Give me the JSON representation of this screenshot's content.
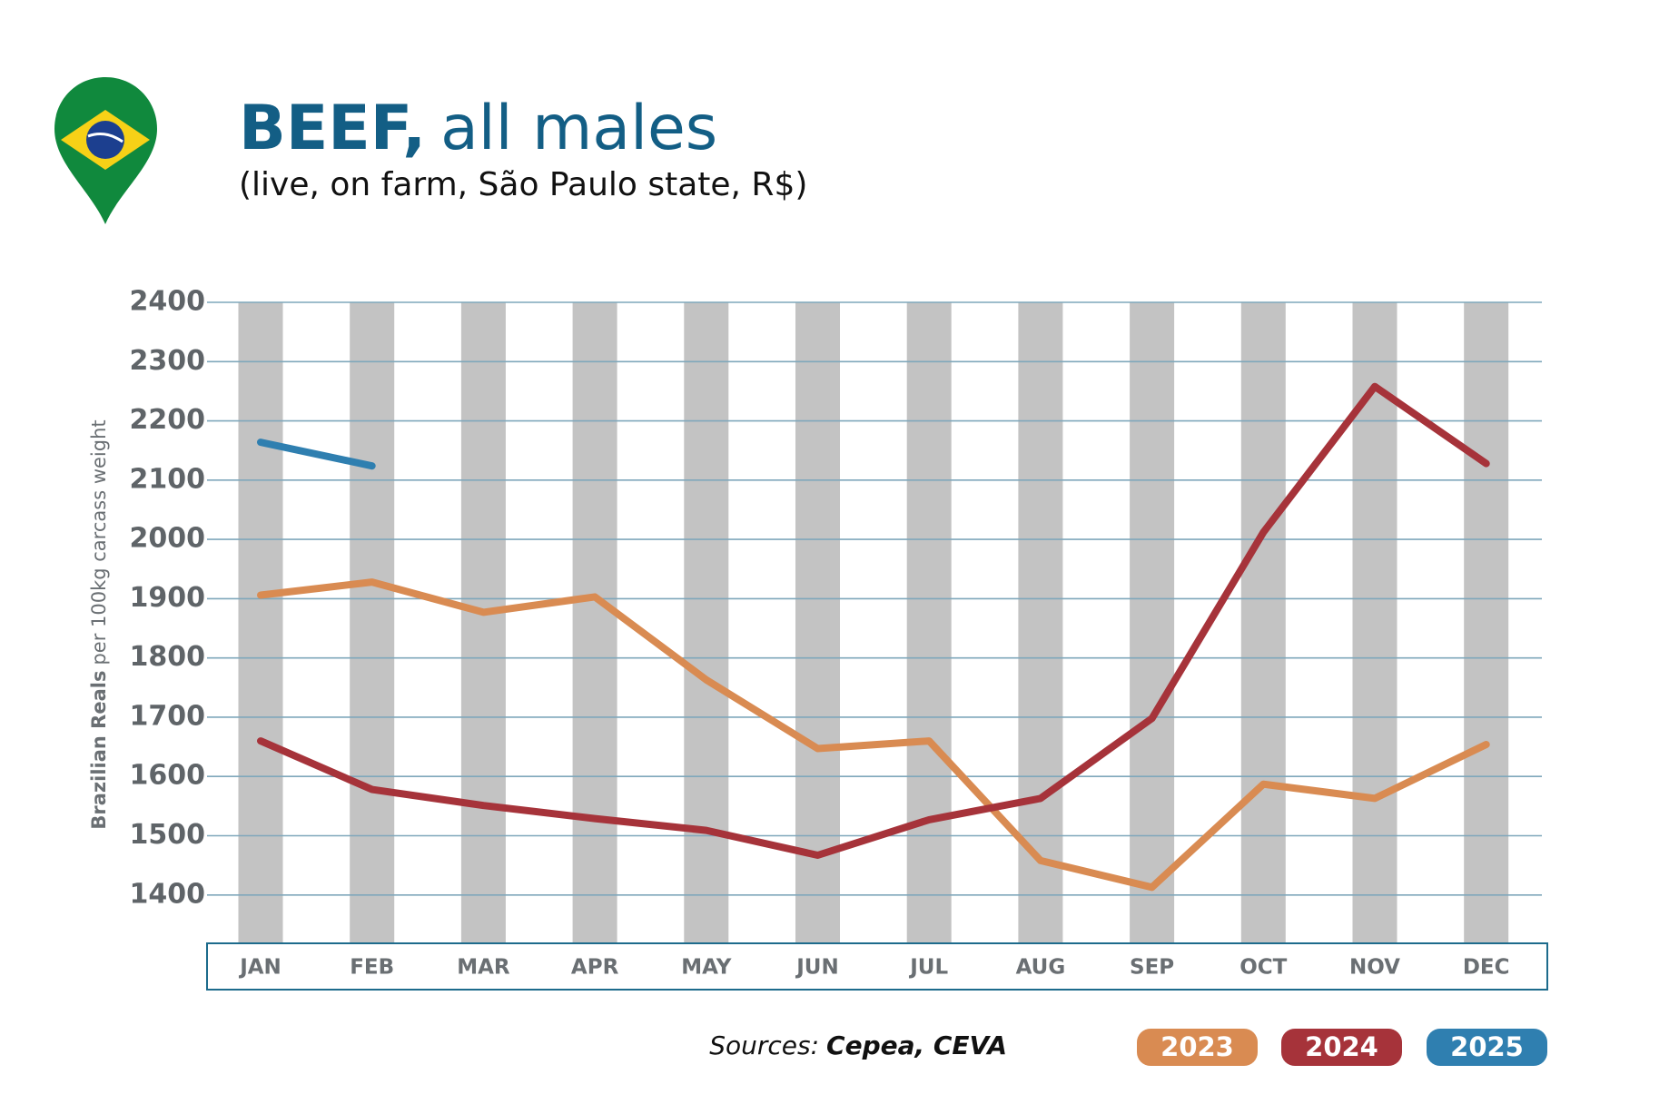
{
  "chart_data": {
    "type": "line",
    "title_emphasis": "BEEF,",
    "title": "all males",
    "subtitle": "(live, on farm, São Paulo state, R$)",
    "y_label_emphasis": "Brazilian Reals",
    "y_label": "per 100kg carcass weight",
    "source_label": "Sources:",
    "source": "Cepea, CEVA",
    "categories": [
      "JAN",
      "FEB",
      "MAR",
      "APR",
      "MAY",
      "JUN",
      "JUL",
      "AUG",
      "SEP",
      "OCT",
      "NOV",
      "DEC"
    ],
    "series": [
      {
        "name": "2023",
        "color": "#d98b52",
        "values": [
          1906,
          1928,
          1877,
          1903,
          1763,
          1647,
          1660,
          1458,
          1413,
          1587,
          1563,
          1654
        ]
      },
      {
        "name": "2024",
        "color": "#a6333a",
        "values": [
          1660,
          1578,
          1551,
          1529,
          1509,
          1467,
          1527,
          1563,
          1698,
          2012,
          2258,
          2128
        ]
      },
      {
        "name": "2025",
        "color": "#2f7fb0",
        "values": [
          2164,
          2124,
          null,
          null,
          null,
          null,
          null,
          null,
          null,
          null,
          null,
          null
        ]
      }
    ],
    "ylim": [
      1320,
      2400
    ],
    "yticks": [
      1400,
      1500,
      1600,
      1700,
      1800,
      1900,
      2000,
      2100,
      2200,
      2300,
      2400
    ],
    "grid": true
  }
}
